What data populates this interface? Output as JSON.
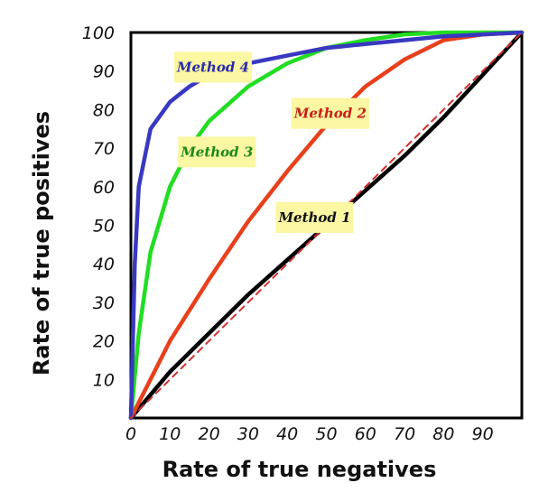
{
  "chart_data": {
    "type": "line",
    "title": "",
    "xlabel": "Rate of true negatives",
    "ylabel": "Rate of true positives",
    "xlim": [
      0,
      100
    ],
    "ylim": [
      0,
      100
    ],
    "x_ticks": [
      0,
      10,
      20,
      30,
      40,
      50,
      60,
      70,
      80,
      90
    ],
    "y_ticks": [
      10,
      20,
      30,
      40,
      50,
      60,
      70,
      80,
      90,
      100
    ],
    "x_tick_labels": [
      "0",
      "10",
      "20",
      "30",
      "40",
      "50",
      "60",
      "70",
      "80",
      "90"
    ],
    "y_tick_labels": [
      "10",
      "20",
      "30",
      "40",
      "50",
      "60",
      "70",
      "80",
      "90",
      "100"
    ],
    "grid": false,
    "legend": "none",
    "series": [
      {
        "name": "Method 1",
        "color": "#000000",
        "x": [
          0,
          10,
          20,
          30,
          40,
          50,
          60,
          70,
          80,
          90,
          100
        ],
        "y": [
          0,
          12,
          22,
          32,
          41,
          50,
          59,
          68,
          78,
          89,
          100
        ]
      },
      {
        "name": "Method 2",
        "color": "#e8401c",
        "x": [
          0,
          5,
          10,
          20,
          30,
          40,
          50,
          60,
          70,
          80,
          90,
          100
        ],
        "y": [
          0,
          10,
          20,
          36,
          51,
          64,
          76,
          86,
          93,
          98,
          99.5,
          100
        ]
      },
      {
        "name": "Method 3",
        "color": "#22dd22",
        "x": [
          0,
          2,
          5,
          10,
          15,
          20,
          30,
          40,
          50,
          60,
          70,
          80,
          90,
          100
        ],
        "y": [
          0,
          22,
          43,
          60,
          70,
          77,
          86,
          92,
          96,
          98,
          99.5,
          100,
          100,
          100
        ]
      },
      {
        "name": "Method 4",
        "color": "#3838c0",
        "x": [
          0,
          1,
          2,
          5,
          10,
          15,
          20,
          30,
          40,
          50,
          60,
          70,
          80,
          90,
          100
        ],
        "y": [
          0,
          40,
          60,
          75,
          82,
          86,
          89,
          92,
          94,
          96,
          97,
          98,
          99,
          99.5,
          100
        ]
      },
      {
        "name": "",
        "color": "#d43030",
        "dashed": true,
        "x": [
          0,
          100
        ],
        "y": [
          0,
          100
        ]
      }
    ],
    "annotations": [
      {
        "text": "Method 4",
        "x": 21,
        "y": 91,
        "color": "#2a2aa8"
      },
      {
        "text": "Method 3",
        "x": 22,
        "y": 69,
        "color": "#1a8a1a"
      },
      {
        "text": "Method 2",
        "x": 51,
        "y": 79,
        "color": "#c8201a"
      },
      {
        "text": "Method 1",
        "x": 47,
        "y": 52,
        "color": "#111111"
      }
    ]
  }
}
